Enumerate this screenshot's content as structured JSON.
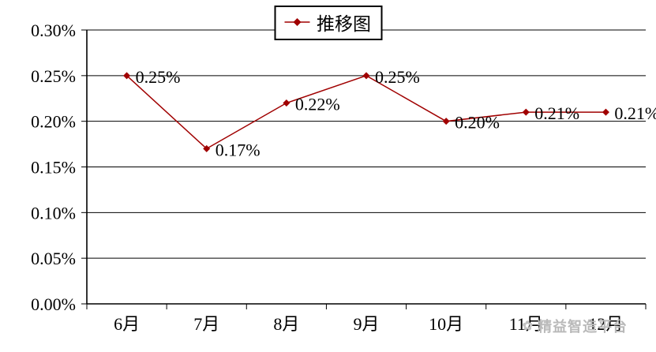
{
  "chart_data": {
    "type": "line",
    "title": "推移图",
    "categories": [
      "6月",
      "7月",
      "8月",
      "9月",
      "10月",
      "11月",
      "12月"
    ],
    "series": [
      {
        "name": "推移图",
        "values": [
          0.25,
          0.17,
          0.22,
          0.25,
          0.2,
          0.21,
          0.21
        ]
      }
    ],
    "data_labels": [
      "0.25%",
      "0.17%",
      "0.22%",
      "0.25%",
      "0.20%",
      "0.21%",
      "0.21%"
    ],
    "y_ticks": [
      "0.30%",
      "0.25%",
      "0.20%",
      "0.15%",
      "0.10%",
      "0.05%",
      "0.00%"
    ],
    "ylim": [
      0,
      0.3
    ],
    "y_step": 0.05,
    "xlabel": "",
    "ylabel": "",
    "grid": true,
    "legend_position": "top-center",
    "line_color": "#a00000",
    "marker": "diamond",
    "marker_color": "#a00000",
    "axis_color": "#000000",
    "grid_color": "#000000",
    "label_color": "#000000"
  },
  "legend": {
    "label": "推移图"
  },
  "watermark": {
    "text": "精益智造平台",
    "icon": "flower-logo"
  }
}
